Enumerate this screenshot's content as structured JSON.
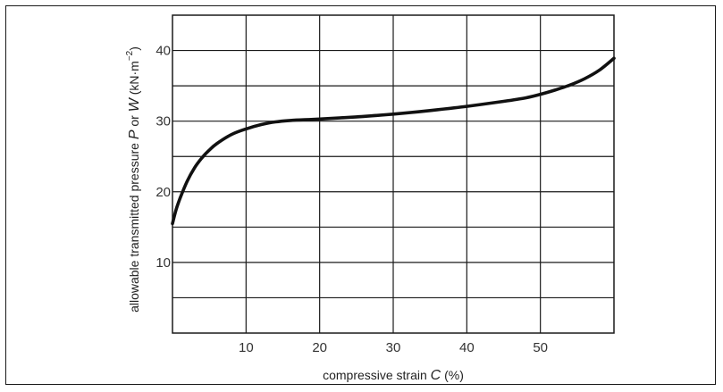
{
  "chart_data": {
    "type": "line",
    "title": "",
    "xlabel_parts": [
      "compressive strain ",
      "C",
      " (%)"
    ],
    "ylabel_parts": [
      "allowable transmitted pressure ",
      "P",
      " or ",
      "W",
      " (kN·m",
      "−2",
      ")"
    ],
    "xlim": [
      0,
      60
    ],
    "ylim": [
      0,
      45
    ],
    "x_ticks": [
      10,
      20,
      30,
      40,
      50
    ],
    "y_ticks": [
      10,
      20,
      30,
      40
    ],
    "x_grid": [
      10,
      20,
      30,
      40,
      50
    ],
    "y_grid": [
      5,
      10,
      15,
      20,
      25,
      30,
      35,
      40
    ],
    "grid": true,
    "series": [
      {
        "color": "#111111",
        "x": [
          0,
          0.5,
          1,
          2,
          3,
          4,
          5,
          6,
          8,
          10,
          12,
          14,
          16,
          18,
          20,
          25,
          30,
          35,
          40,
          45,
          48,
          50,
          52,
          54,
          56,
          58,
          60
        ],
        "y": [
          15.5,
          17.5,
          19.0,
          21.5,
          23.4,
          24.8,
          25.9,
          26.8,
          28.1,
          28.9,
          29.5,
          29.9,
          30.1,
          30.2,
          30.3,
          30.6,
          31.0,
          31.5,
          32.1,
          32.8,
          33.3,
          33.8,
          34.4,
          35.1,
          36.0,
          37.2,
          38.9
        ]
      }
    ]
  }
}
